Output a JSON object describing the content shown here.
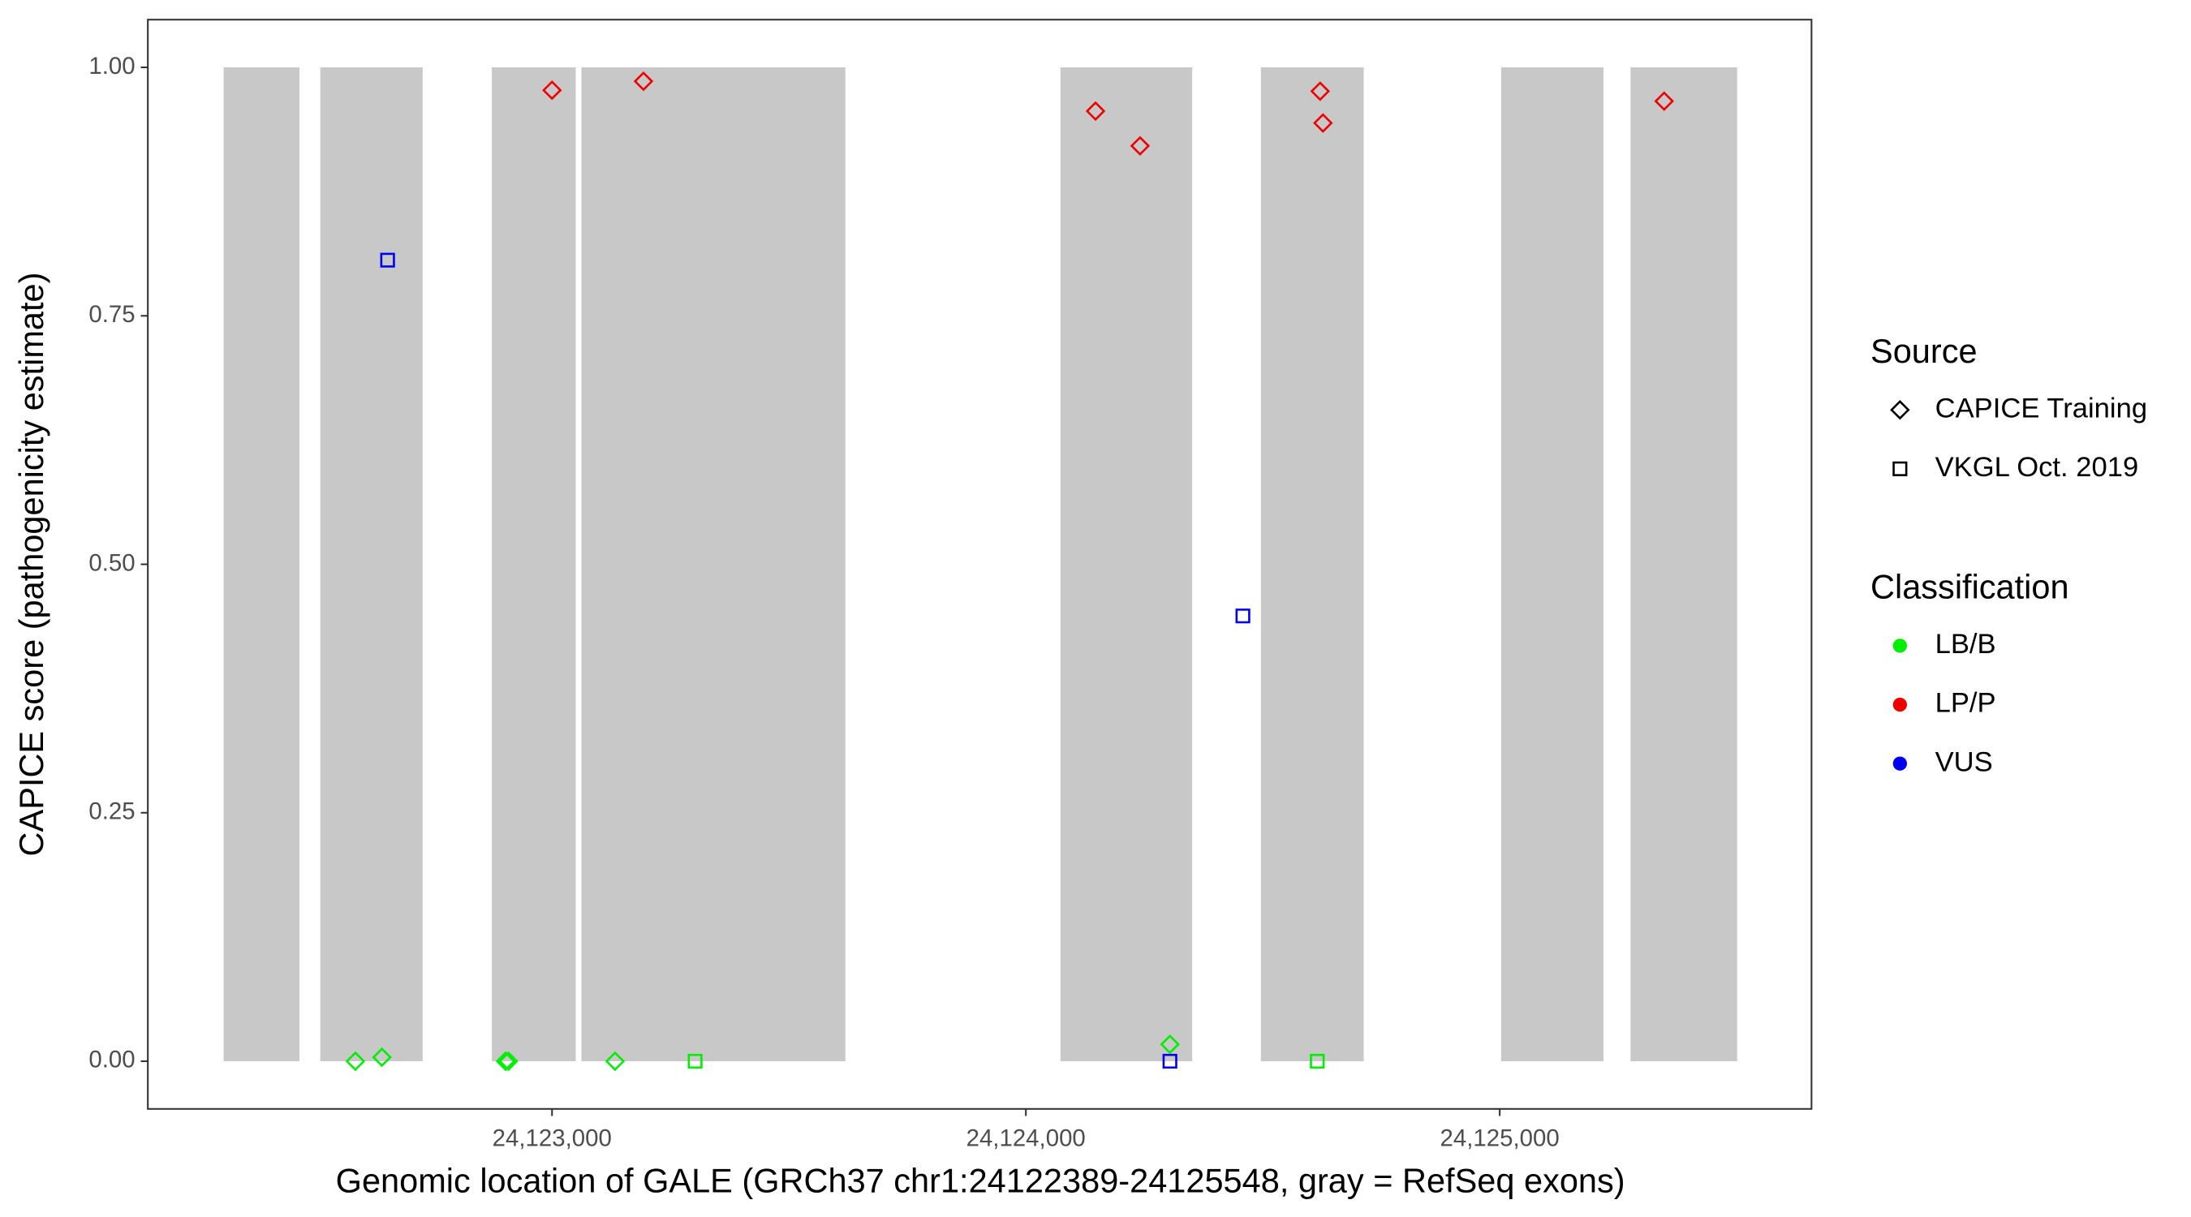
{
  "chart_data": {
    "type": "scatter",
    "x_label": "Genomic location of GALE (GRCh37 chr1:24122389-24125548, gray = RefSeq exons)",
    "y_label": "CAPICE score (pathogenicity estimate)",
    "xlim": [
      24122147,
      24125658
    ],
    "ylim": [
      -0.048,
      1.048
    ],
    "xticks": [
      {
        "value": 24123000,
        "label": "24,123,000"
      },
      {
        "value": 24124000,
        "label": "24,124,000"
      },
      {
        "value": 24125000,
        "label": "24,125,000"
      }
    ],
    "yticks": [
      {
        "value": 0,
        "label": "0.00"
      },
      {
        "value": 0.25,
        "label": "0.25"
      },
      {
        "value": 0.5,
        "label": "0.50"
      },
      {
        "value": 0.75,
        "label": "0.75"
      },
      {
        "value": 1,
        "label": "1.00"
      }
    ],
    "grid": false,
    "exons": {
      "color": "#c8c8c8",
      "ymin": 0,
      "ymax": 1,
      "starts": [
        24122307,
        24122511,
        24122873,
        24123062,
        24124073,
        24124496,
        24125003,
        24125276
      ],
      "ends": [
        24122467,
        24122727,
        24123050,
        24123619,
        24124351,
        24124713,
        24125219,
        24125501
      ]
    },
    "source_legend": {
      "title": "Source",
      "entries": [
        {
          "name": "CAPICE Training",
          "shape": "diamond"
        },
        {
          "name": "VKGL Oct. 2019",
          "shape": "square"
        }
      ]
    },
    "class_legend": {
      "title": "Classification",
      "entries": [
        {
          "name": "LB/B",
          "color": "#00ee00"
        },
        {
          "name": "LP/P",
          "color": "#ee0000"
        },
        {
          "name": "VUS",
          "color": "#0000ee"
        }
      ]
    },
    "points": {
      "x": [
        24122585,
        24122641,
        24122902,
        24122908,
        24123133,
        24123000,
        24123193,
        24124147,
        24124241,
        24124304,
        24124621,
        24124627,
        24125347,
        24122653,
        24123302,
        24124304,
        24124458,
        24124615
      ],
      "y": [
        0,
        0.004,
        0,
        0,
        0,
        0.977,
        0.986,
        0.956,
        0.921,
        0.017,
        0.976,
        0.944,
        0.966,
        0.806,
        0,
        0,
        0.448,
        0
      ],
      "source": [
        0,
        0,
        0,
        0,
        0,
        0,
        0,
        0,
        0,
        0,
        0,
        0,
        0,
        1,
        1,
        1,
        1,
        1
      ],
      "class": [
        0,
        0,
        0,
        0,
        0,
        1,
        1,
        1,
        1,
        0,
        1,
        1,
        1,
        2,
        0,
        2,
        2,
        0
      ]
    }
  }
}
